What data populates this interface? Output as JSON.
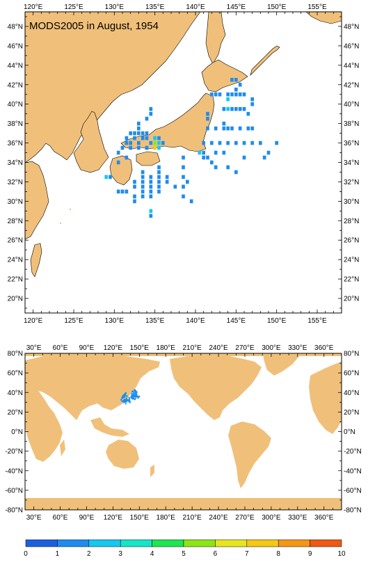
{
  "title": "MODS2005 in August, 1954",
  "colors": {
    "land": "#F0C07A",
    "ocean": "#FFFFFF",
    "frame": "#000000"
  },
  "regional_map": {
    "lon_labels": [
      "120°E",
      "125°E",
      "130°E",
      "135°E",
      "140°E",
      "145°E",
      "150°E",
      "155°E"
    ],
    "lat_labels": [
      "48°N",
      "46°N",
      "44°N",
      "42°N",
      "40°N",
      "38°N",
      "36°N",
      "34°N",
      "32°N",
      "30°N",
      "28°N",
      "26°N",
      "24°N",
      "22°N",
      "20°N"
    ],
    "lon_range": [
      119,
      158
    ],
    "lat_range": [
      18.5,
      49.5
    ]
  },
  "global_map": {
    "lon_labels": [
      "30°E",
      "60°E",
      "90°E",
      "120°E",
      "150°E",
      "180°E",
      "210°E",
      "240°E",
      "270°E",
      "300°E",
      "330°E",
      "360°E"
    ],
    "lat_labels": [
      "80°N",
      "60°N",
      "40°N",
      "20°N",
      "0°N",
      "-20°N",
      "-40°N",
      "-60°N",
      "-80°N"
    ],
    "lon_range": [
      20,
      380
    ],
    "lat_range": [
      -80,
      80
    ]
  },
  "colorbar": {
    "labels": [
      "0",
      "1",
      "2",
      "3",
      "4",
      "5",
      "6",
      "7",
      "8",
      "9",
      "10"
    ],
    "colors": [
      "#1E5FE0",
      "#1E8CF0",
      "#14C8F0",
      "#14E6C8",
      "#1EE650",
      "#8CE614",
      "#E6E61E",
      "#F5C814",
      "#F59614",
      "#F05A14"
    ]
  },
  "chart_data": {
    "type": "heatmap",
    "title": "MODS2005 in August, 1954",
    "value_range": [
      0,
      10
    ],
    "cells_lonlat_value": [
      [
        134.5,
        39.5,
        1
      ],
      [
        134.5,
        39,
        1
      ],
      [
        134,
        38.5,
        1
      ],
      [
        133,
        38,
        1
      ],
      [
        133,
        37.5,
        1
      ],
      [
        132,
        37,
        1
      ],
      [
        132.5,
        37,
        1
      ],
      [
        133,
        37,
        1
      ],
      [
        133.5,
        37,
        1
      ],
      [
        134,
        37,
        1
      ],
      [
        131.5,
        36.5,
        1
      ],
      [
        132.5,
        36.5,
        1
      ],
      [
        133.5,
        36.5,
        1
      ],
      [
        134,
        36.5,
        1
      ],
      [
        135,
        36.5,
        2
      ],
      [
        135.5,
        36.5,
        1
      ],
      [
        131.5,
        36,
        1
      ],
      [
        132,
        36,
        1
      ],
      [
        133,
        36,
        1
      ],
      [
        134.5,
        36,
        1
      ],
      [
        135,
        36,
        5
      ],
      [
        135.5,
        36,
        2
      ],
      [
        136,
        36,
        1
      ],
      [
        131,
        35.5,
        1
      ],
      [
        132,
        35.5,
        1
      ],
      [
        133,
        35.5,
        1
      ],
      [
        134,
        35.5,
        1
      ],
      [
        135,
        35.5,
        7
      ],
      [
        135.5,
        35.5,
        2
      ],
      [
        130.5,
        35,
        1
      ],
      [
        131.5,
        34.5,
        1
      ],
      [
        130.5,
        34,
        1
      ],
      [
        129,
        32.5,
        2
      ],
      [
        129.5,
        32.5,
        1
      ],
      [
        130.5,
        31,
        1
      ],
      [
        131,
        31,
        1
      ],
      [
        131.5,
        31,
        1
      ],
      [
        132.5,
        32,
        1
      ],
      [
        132.5,
        31.5,
        1
      ],
      [
        132.5,
        30.5,
        1
      ],
      [
        132.5,
        30,
        1
      ],
      [
        133.5,
        33,
        1
      ],
      [
        133.5,
        32.5,
        1
      ],
      [
        133.5,
        32,
        1
      ],
      [
        133.5,
        31.5,
        1
      ],
      [
        133.5,
        31,
        1
      ],
      [
        133.5,
        30.5,
        1
      ],
      [
        134.5,
        32.5,
        1
      ],
      [
        134.5,
        32,
        1
      ],
      [
        134.5,
        31.5,
        1
      ],
      [
        134.5,
        31,
        1
      ],
      [
        134.5,
        30.5,
        1
      ],
      [
        135.5,
        33.5,
        1
      ],
      [
        135.5,
        33,
        1
      ],
      [
        135.5,
        32.5,
        1
      ],
      [
        135.5,
        32,
        1
      ],
      [
        135.5,
        31.5,
        1
      ],
      [
        135.5,
        31,
        1
      ],
      [
        136.5,
        32.5,
        1
      ],
      [
        136.5,
        32,
        1
      ],
      [
        137.5,
        31.5,
        1
      ],
      [
        138.5,
        34.5,
        1
      ],
      [
        138.5,
        33.5,
        1
      ],
      [
        138.5,
        32.5,
        1
      ],
      [
        138.5,
        31.5,
        1
      ],
      [
        138.5,
        30.5,
        1
      ],
      [
        139,
        32,
        1
      ],
      [
        139.5,
        30,
        1
      ],
      [
        134.5,
        28.5,
        1
      ],
      [
        134.5,
        29,
        2
      ],
      [
        140.5,
        35,
        2
      ],
      [
        141,
        35,
        1
      ],
      [
        141,
        34.5,
        1
      ],
      [
        141.5,
        34.5,
        1
      ],
      [
        142,
        34,
        1
      ],
      [
        142.5,
        33.5,
        1
      ],
      [
        144,
        33.5,
        1
      ],
      [
        145,
        33,
        1
      ],
      [
        141,
        36,
        1
      ],
      [
        142,
        36,
        1
      ],
      [
        143,
        36,
        1
      ],
      [
        144,
        36,
        1
      ],
      [
        145,
        36,
        1
      ],
      [
        146,
        36,
        1
      ],
      [
        147,
        36,
        1
      ],
      [
        148,
        36,
        1
      ],
      [
        150,
        36,
        1
      ],
      [
        141.5,
        37.5,
        1
      ],
      [
        142.5,
        37.5,
        1
      ],
      [
        143.5,
        37.5,
        1
      ],
      [
        144,
        37.5,
        1
      ],
      [
        144.5,
        37.5,
        1
      ],
      [
        145.5,
        37.5,
        1
      ],
      [
        146.5,
        37.5,
        1
      ],
      [
        147,
        37.5,
        1
      ],
      [
        143.5,
        39.5,
        1
      ],
      [
        144,
        39.5,
        2
      ],
      [
        144.5,
        39.5,
        1
      ],
      [
        145,
        39.5,
        1
      ],
      [
        145.5,
        39.5,
        1
      ],
      [
        146,
        39.5,
        1
      ],
      [
        147,
        40,
        1
      ],
      [
        147,
        40.5,
        1
      ],
      [
        142,
        41,
        1
      ],
      [
        142.5,
        41,
        1
      ],
      [
        143,
        41,
        1
      ],
      [
        144,
        41,
        1
      ],
      [
        144.5,
        41,
        1
      ],
      [
        145,
        41,
        1
      ],
      [
        145.5,
        41,
        1
      ],
      [
        146,
        41,
        1
      ],
      [
        144.5,
        42.5,
        1
      ],
      [
        145,
        42.5,
        1
      ],
      [
        145.5,
        42,
        1
      ],
      [
        145,
        41.5,
        1
      ],
      [
        144,
        40.5,
        2
      ],
      [
        146.5,
        39,
        1
      ],
      [
        143.5,
        38,
        1
      ],
      [
        143.5,
        35,
        1
      ],
      [
        142.5,
        35,
        1
      ],
      [
        146,
        34.5,
        1
      ],
      [
        148.5,
        34.5,
        1
      ],
      [
        149,
        35,
        1
      ],
      [
        141.5,
        39,
        1
      ],
      [
        141.5,
        38.5,
        1
      ]
    ]
  }
}
